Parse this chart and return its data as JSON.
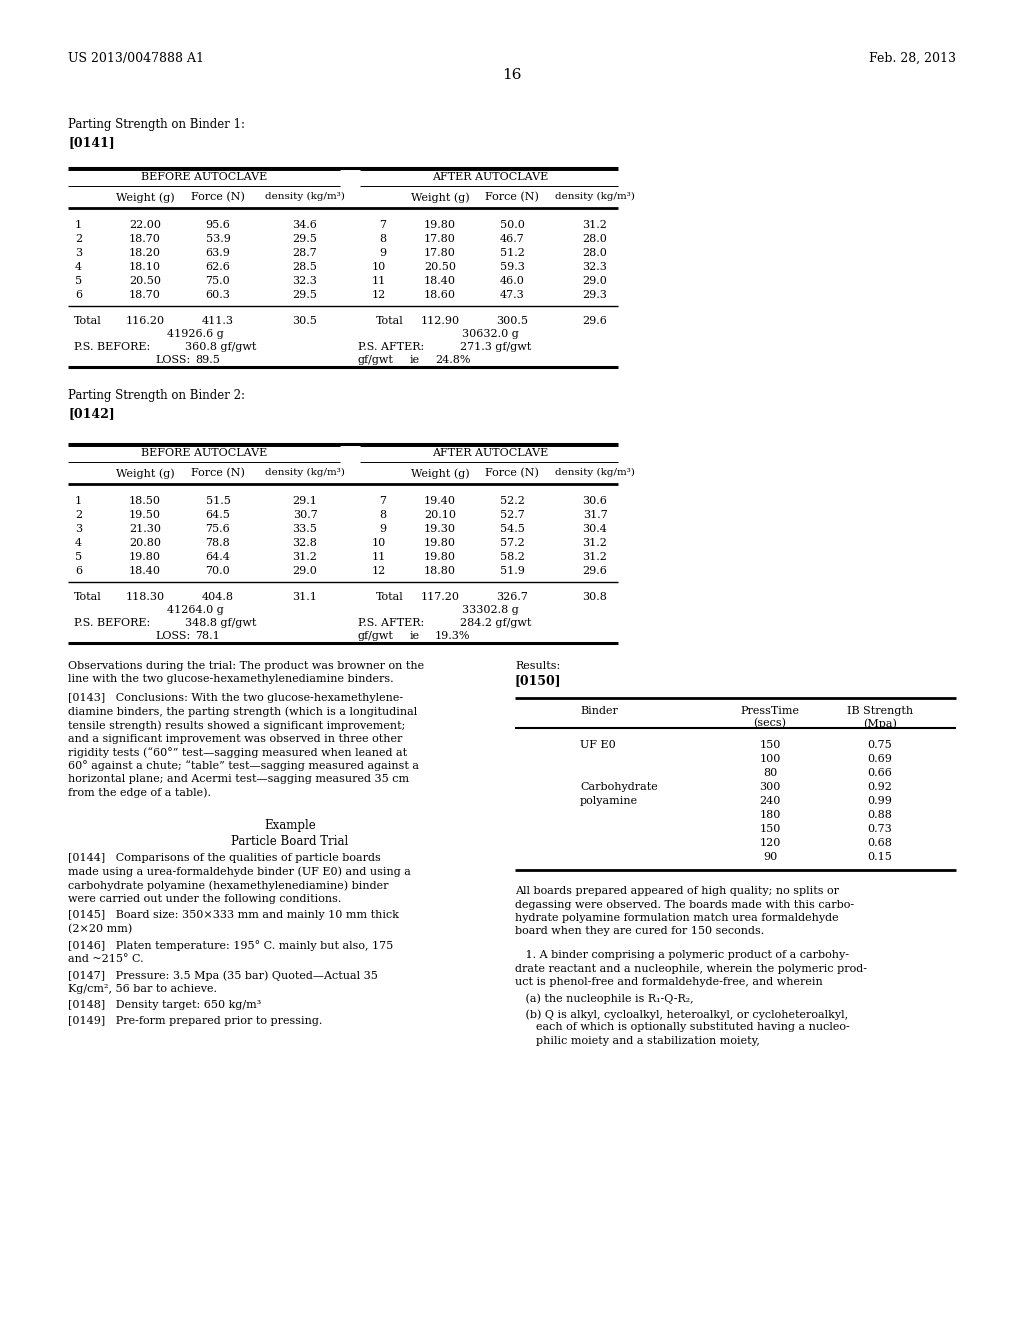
{
  "page_number": "16",
  "header_left": "US 2013/0047888 A1",
  "header_right": "Feb. 28, 2013",
  "bg_color": "#ffffff",
  "section1_label": "Parting Strength on Binder 1:",
  "section1_ref": "[0141]",
  "section2_label": "Parting Strength on Binder 2:",
  "section2_ref": "[0142]",
  "table1": {
    "before_rows": [
      [
        1,
        "22.00",
        "95.6",
        "34.6",
        7,
        "19.80",
        "50.0",
        "31.2"
      ],
      [
        2,
        "18.70",
        "53.9",
        "29.5",
        8,
        "17.80",
        "46.7",
        "28.0"
      ],
      [
        3,
        "18.20",
        "63.9",
        "28.7",
        9,
        "17.80",
        "51.2",
        "28.0"
      ],
      [
        4,
        "18.10",
        "62.6",
        "28.5",
        10,
        "20.50",
        "59.3",
        "32.3"
      ],
      [
        5,
        "20.50",
        "75.0",
        "32.3",
        11,
        "18.40",
        "46.0",
        "29.0"
      ],
      [
        6,
        "18.70",
        "60.3",
        "29.5",
        12,
        "18.60",
        "47.3",
        "29.3"
      ]
    ],
    "total_before": [
      "116.20",
      "411.3",
      "30.5"
    ],
    "total_after": [
      "112.90",
      "300.5",
      "29.6"
    ],
    "ps_before_g": "41926.6 g",
    "ps_before_gfgwt": "360.8 gf/gwt",
    "ps_before_loss": "89.5",
    "ps_after_g": "30632.0 g",
    "ps_after_gfgwt": "271.3 gf/gwt",
    "ps_after_ie": "24.8%"
  },
  "table2": {
    "before_rows": [
      [
        1,
        "18.50",
        "51.5",
        "29.1",
        7,
        "19.40",
        "52.2",
        "30.6"
      ],
      [
        2,
        "19.50",
        "64.5",
        "30.7",
        8,
        "20.10",
        "52.7",
        "31.7"
      ],
      [
        3,
        "21.30",
        "75.6",
        "33.5",
        9,
        "19.30",
        "54.5",
        "30.4"
      ],
      [
        4,
        "20.80",
        "78.8",
        "32.8",
        10,
        "19.80",
        "57.2",
        "31.2"
      ],
      [
        5,
        "19.80",
        "64.4",
        "31.2",
        11,
        "19.80",
        "58.2",
        "31.2"
      ],
      [
        6,
        "18.40",
        "70.0",
        "29.0",
        12,
        "18.80",
        "51.9",
        "29.6"
      ]
    ],
    "total_before": [
      "118.30",
      "404.8",
      "31.1"
    ],
    "total_after": [
      "117.20",
      "326.7",
      "30.8"
    ],
    "ps_before_g": "41264.0 g",
    "ps_before_gfgwt": "348.8 gf/gwt",
    "ps_before_loss": "78.1",
    "ps_after_g": "33302.8 g",
    "ps_after_gfgwt": "284.2 gf/gwt",
    "ps_after_ie": "19.3%"
  },
  "observations_line1": "Observations during the trial: The product was browner on the",
  "observations_line2": "line with the two glucose-hexamethylenediamine binders.",
  "results_label": "Results:",
  "results_ref": "[0150]",
  "conc_lines": [
    "[0143]   Conclusions: With the two glucose-hexamethylene-",
    "diamine binders, the parting strength (which is a longitudinal",
    "tensile strength) results showed a significant improvement;",
    "and a significant improvement was observed in three other",
    "rigidity tests (“60°” test—sagging measured when leaned at",
    "60° against a chute; “table” test—sagging measured against a",
    "horizontal plane; and Acermi test—sagging measured 35 cm",
    "from the edge of a table)."
  ],
  "example_title": "Example",
  "example_subtitle": "Particle Board Trial",
  "para144_lines": [
    "[0144]   Comparisons of the qualities of particle boards",
    "made using a urea-formaldehyde binder (UF E0) and using a",
    "carbohydrate polyamine (hexamethylenediamine) binder",
    "were carried out under the following conditions."
  ],
  "para145_lines": [
    "[0145]   Board size: 350×333 mm and mainly 10 mm thick",
    "(2×20 mm)"
  ],
  "para146_lines": [
    "[0146]   Platen temperature: 195° C. mainly but also, 175",
    "and ~215° C."
  ],
  "para147_lines": [
    "[0147]   Pressure: 3.5 Mpa (35 bar) Quoted—Actual 35",
    "Kg/cm², 56 bar to achieve."
  ],
  "para148": "[0148]   Density target: 650 kg/m³",
  "para149": "[0149]   Pre-form prepared prior to pressing.",
  "results_table": {
    "binder_col": [
      "UF E0",
      "",
      "",
      "Carbohydrate",
      "polyamine",
      "",
      "",
      "",
      ""
    ],
    "press_time": [
      "150",
      "100",
      "80",
      "300",
      "240",
      "180",
      "150",
      "120",
      "90"
    ],
    "ib_strength": [
      "0.75",
      "0.69",
      "0.66",
      "0.92",
      "0.99",
      "0.88",
      "0.73",
      "0.68",
      "0.15"
    ]
  },
  "after_results_lines": [
    "All boards prepared appeared of high quality; no splits or",
    "degassing were observed. The boards made with this carbo-",
    "hydrate polyamine formulation match urea formaldehyde",
    "board when they are cured for 150 seconds."
  ],
  "claim1_lines": [
    "   1. A binder comprising a polymeric product of a carbohy-",
    "drate reactant and a nucleophile, wherein the polymeric prod-",
    "uct is phenol-free and formaldehyde-free, and wherein"
  ],
  "claim1a": "   (a) the nucleophile is R₁-Q-R₂,",
  "claim1b_lines": [
    "   (b) Q is alkyl, cycloalkyl, heteroalkyl, or cycloheteroalkyl,",
    "      each of which is optionally substituted having a nucleo-",
    "      philic moiety and a stabilization moiety,"
  ]
}
